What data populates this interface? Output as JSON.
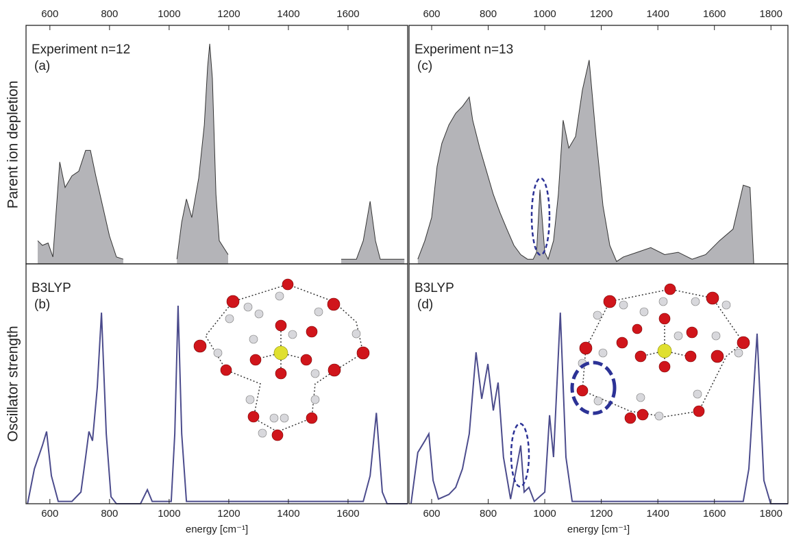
{
  "chart_data": [
    {
      "type": "area",
      "label": "Experiment  n=12",
      "panel": "(a)",
      "ylabel": "Parent ion depletion",
      "color": "#b4b4b8",
      "xlim": [
        520,
        1800
      ],
      "ylim": [
        0,
        1
      ],
      "xticks": [
        600,
        800,
        1000,
        1200,
        1400,
        1600
      ],
      "x": [
        559,
        575,
        594,
        610,
        633,
        651,
        674,
        697,
        720,
        736,
        754,
        777,
        800,
        823,
        846,
        null,
        1026,
        1042,
        1058,
        1076,
        1099,
        1118,
        1129,
        1136,
        1145,
        1157,
        1168,
        1198,
        null,
        1577,
        1628,
        1651,
        1674,
        1692,
        1708,
        1789
      ],
      "values": [
        0.1,
        0.08,
        0.09,
        0.03,
        0.44,
        0.33,
        0.38,
        0.4,
        0.49,
        0.49,
        0.38,
        0.25,
        0.12,
        0.03,
        0.02,
        null,
        0.02,
        0.18,
        0.28,
        0.2,
        0.37,
        0.6,
        0.85,
        0.95,
        0.8,
        0.3,
        0.1,
        0.04,
        null,
        0.02,
        0.02,
        0.1,
        0.27,
        0.1,
        0.02,
        0.02
      ]
    },
    {
      "type": "line",
      "label": "B3LYP",
      "panel": "(b)",
      "ylabel": "Oscillator strength",
      "xlabel": "energy [cm⁻¹]",
      "color": "#4b4b8c",
      "xlim": [
        520,
        1800
      ],
      "ylim": [
        0,
        1
      ],
      "xticks": [
        600,
        800,
        1000,
        1200,
        1400,
        1600
      ],
      "x": [
        525,
        548,
        575,
        589,
        605,
        628,
        674,
        704,
        720,
        731,
        743,
        759,
        773,
        789,
        805,
        823,
        904,
        927,
        943,
        1007,
        1019,
        1030,
        1042,
        1058,
        1651,
        1674,
        1695,
        1715,
        1731,
        1800
      ],
      "values": [
        0,
        0.15,
        0.25,
        0.31,
        0.12,
        0.01,
        0.01,
        0.05,
        0.2,
        0.31,
        0.27,
        0.5,
        0.82,
        0.3,
        0.03,
        0,
        0,
        0.06,
        0.01,
        0.01,
        0.3,
        0.85,
        0.3,
        0.01,
        0.01,
        0.12,
        0.39,
        0.05,
        0,
        0
      ]
    },
    {
      "type": "area",
      "label": "Experiment  n=13",
      "panel": "(c)",
      "color": "#b4b4b8",
      "xlim": [
        520,
        1860
      ],
      "ylim": [
        0,
        1
      ],
      "xticks": [
        600,
        800,
        1000,
        1200,
        1400,
        1600,
        1800
      ],
      "x": [
        551,
        576,
        600,
        619,
        636,
        661,
        685,
        709,
        733,
        745,
        770,
        794,
        818,
        842,
        866,
        891,
        915,
        939,
        959,
        971,
        983,
        1000,
        1012,
        1031,
        1048,
        1065,
        1085,
        1109,
        1133,
        1157,
        1181,
        1206,
        1230,
        1254,
        1278,
        1327,
        1375,
        1424,
        1472,
        1521,
        1569,
        1618,
        1666,
        1702,
        1726,
        1739
      ],
      "values": [
        0.02,
        0.1,
        0.2,
        0.42,
        0.52,
        0.6,
        0.65,
        0.68,
        0.72,
        0.62,
        0.5,
        0.4,
        0.3,
        0.22,
        0.15,
        0.08,
        0.04,
        0.02,
        0.02,
        0.05,
        0.32,
        0.05,
        0.02,
        0.1,
        0.3,
        0.62,
        0.5,
        0.55,
        0.75,
        0.88,
        0.55,
        0.25,
        0.08,
        0.01,
        0.03,
        0.05,
        0.07,
        0.04,
        0.05,
        0.02,
        0.04,
        0.1,
        0.15,
        0.34,
        0.33,
        0
      ]
    },
    {
      "type": "line",
      "label": "B3LYP",
      "panel": "(d)",
      "xlabel": "energy [cm⁻¹]",
      "color": "#4b4b8c",
      "xlim": [
        520,
        1860
      ],
      "ylim": [
        0,
        1
      ],
      "xticks": [
        600,
        800,
        1000,
        1200,
        1400,
        1600,
        1800
      ],
      "x": [
        527,
        551,
        576,
        590,
        605,
        624,
        661,
        685,
        709,
        733,
        757,
        777,
        799,
        818,
        835,
        854,
        879,
        915,
        927,
        944,
        963,
        1000,
        1017,
        1031,
        1055,
        1075,
        1097,
        1702,
        1722,
        1751,
        1775,
        1799,
        1860
      ],
      "values": [
        0,
        0.22,
        0.27,
        0.3,
        0.1,
        0.02,
        0.04,
        0.07,
        0.15,
        0.3,
        0.65,
        0.45,
        0.6,
        0.4,
        0.52,
        0.2,
        0.02,
        0.25,
        0.05,
        0.07,
        0.01,
        0.05,
        0.38,
        0.2,
        0.82,
        0.2,
        0.01,
        0.01,
        0.15,
        0.73,
        0.1,
        0,
        0
      ]
    }
  ]
}
